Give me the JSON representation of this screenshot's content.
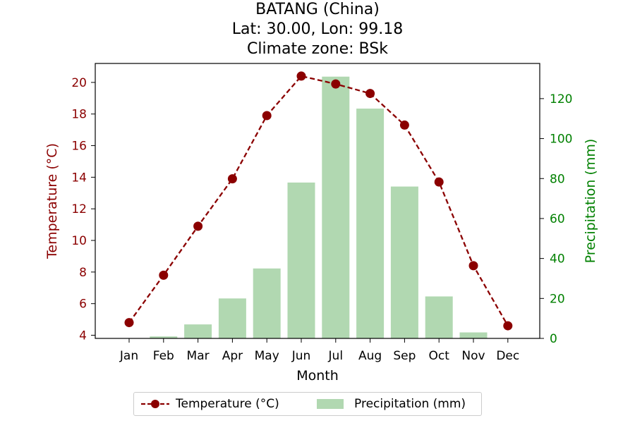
{
  "chart_data": {
    "type": "bar+line",
    "title_lines": [
      "BATANG (China)",
      "Lat: 30.00, Lon: 99.18",
      "Climate zone: BSk"
    ],
    "categories": [
      "Jan",
      "Feb",
      "Mar",
      "Apr",
      "May",
      "Jun",
      "Jul",
      "Aug",
      "Sep",
      "Oct",
      "Nov",
      "Dec"
    ],
    "xlabel": "Month",
    "ylabel_left": "Temperature (°C)",
    "ylabel_right": "Precipitation (mm)",
    "ylim_left": [
      3.8,
      21.2
    ],
    "yticks_left": [
      4,
      6,
      8,
      10,
      12,
      14,
      16,
      18,
      20
    ],
    "ylim_right": [
      0,
      137.6
    ],
    "yticks_right": [
      0,
      20,
      40,
      60,
      80,
      100,
      120
    ],
    "series": [
      {
        "name": "Temperature (°C)",
        "kind": "line",
        "color": "#8b0000",
        "values": [
          4.8,
          7.8,
          10.9,
          13.9,
          17.9,
          20.4,
          19.9,
          19.3,
          17.3,
          13.7,
          8.4,
          4.6
        ]
      },
      {
        "name": "Precipitation (mm)",
        "kind": "bar",
        "color": "#b1d8b1",
        "values": [
          0,
          1,
          7,
          20,
          35,
          78,
          131,
          115,
          76,
          21,
          3,
          0
        ]
      }
    ],
    "grid": false,
    "legend_position": "bottom-center",
    "colors": {
      "left_axis": "#8b0000",
      "right_axis": "#008000"
    }
  }
}
